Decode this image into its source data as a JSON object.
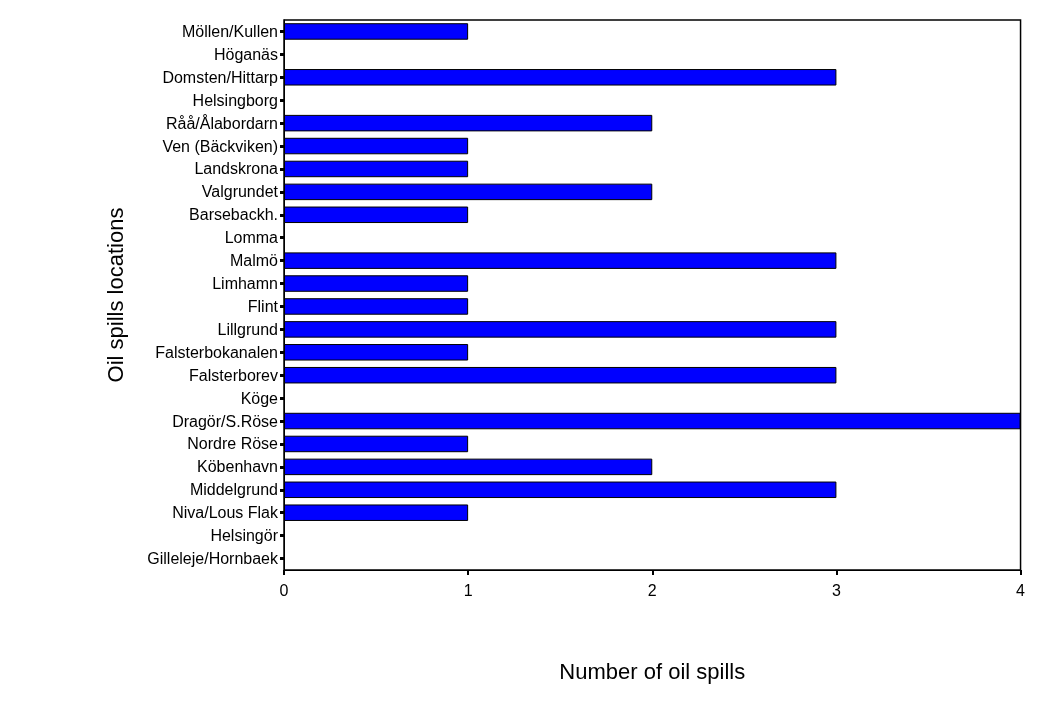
{
  "chart_data": {
    "type": "bar",
    "orientation": "horizontal",
    "xlabel": "Number of oil spills",
    "ylabel": "Oil spills locations",
    "categories": [
      "Möllen/Kullen",
      "Höganäs",
      "Domsten/Hittarp",
      "Helsingborg",
      "Råå/Ålabordarn",
      "Ven (Bäckviken)",
      "Landskrona",
      "Valgrundet",
      "Barsebackh.",
      "Lomma",
      "Malmö",
      "Limhamn",
      "Flint",
      "Lillgrund",
      "Falsterbokanalen",
      "Falsterborev",
      "Köge",
      "Dragör/S.Röse",
      "Nordre Röse",
      "Köbenhavn",
      "Middelgrund",
      "Niva/Lous Flak",
      "Helsingör",
      "Gilleleje/Hornbaek"
    ],
    "values": [
      1,
      0,
      3,
      0,
      2,
      1,
      1,
      2,
      1,
      0,
      3,
      1,
      1,
      3,
      1,
      3,
      0,
      4,
      1,
      2,
      3,
      1,
      0,
      0
    ],
    "color": "#0000ff",
    "xlim": [
      0,
      4
    ],
    "xticks": [
      0,
      1,
      2,
      3,
      4
    ],
    "grid": false
  }
}
